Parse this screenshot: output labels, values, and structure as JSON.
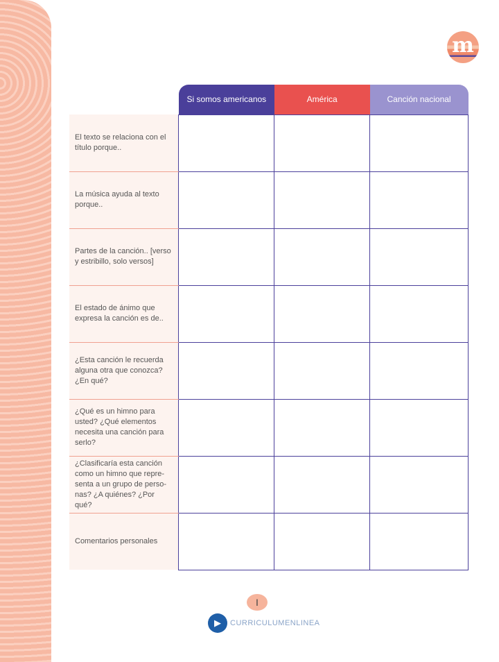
{
  "logo": {
    "letter": "m"
  },
  "table": {
    "columns": [
      "Si somos americanos",
      "América",
      "Canción nacional"
    ],
    "rows": [
      "El texto se relaciona con el título porque..",
      "La música ayuda al texto porque..",
      "Partes de la canción.. [verso y estribillo, solo versos]",
      "El estado de ánimo que expresa la canción es de..",
      "¿Esta canción le recuerda alguna otra que conozca? ¿En qué?",
      "¿Qué es un himno para usted? ¿Qué elementos necesita una canción para serlo?",
      "¿Clasificaría esta canción como un himno que repre-senta a un grupo de perso-nas? ¿A quiénes? ¿Por qué?",
      "Comentarios personales"
    ]
  },
  "footer": {
    "page": "I",
    "brand": "CURRICULUMENLINEA"
  },
  "colors": {
    "col1": "#4a3f9a",
    "col2": "#e9514f",
    "col3": "#9a93cf",
    "strip": "#f7b9a3"
  }
}
